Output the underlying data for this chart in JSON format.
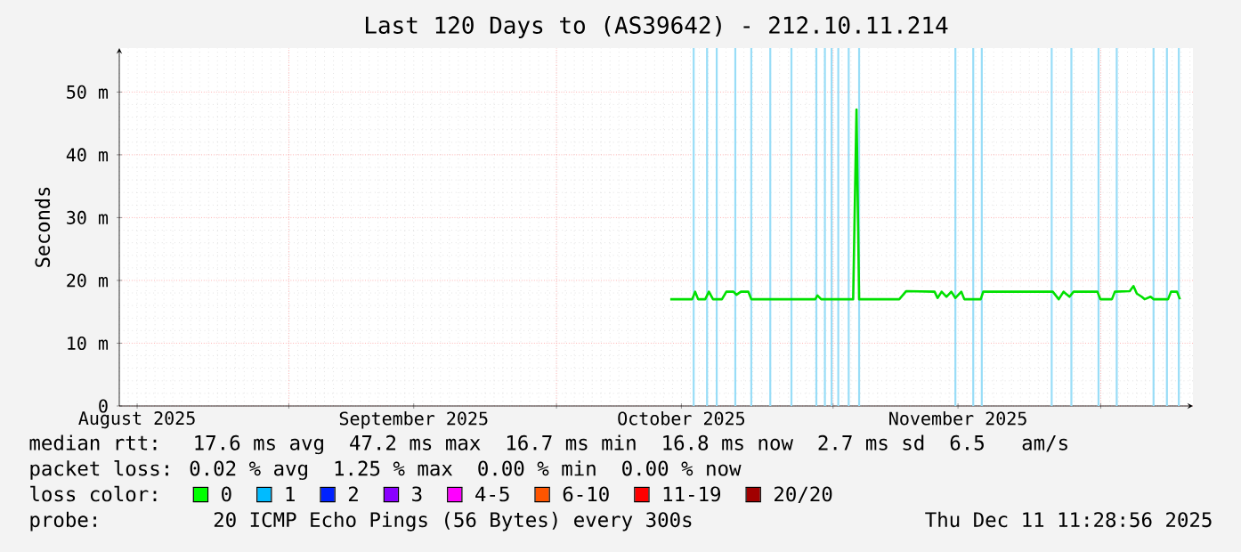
{
  "chart_data": {
    "type": "line",
    "title": "Last 120 Days to (AS39642) - 212.10.11.214",
    "ylabel": "Seconds",
    "xlim": [
      "2025-08-13T00:00",
      "2025-12-11T08:00"
    ],
    "xticks": [
      {
        "value": "2025-08-15T00:00",
        "label": "August 2025"
      },
      {
        "value": "2025-09-01T00:00",
        "label": null
      },
      {
        "value": "2025-09-15T00:00",
        "label": "September 2025"
      },
      {
        "value": "2025-10-01T00:00",
        "label": null
      },
      {
        "value": "2025-10-15T00:00",
        "label": "October 2025"
      },
      {
        "value": "2025-11-01T00:00",
        "label": null
      },
      {
        "value": "2025-11-15T00:00",
        "label": "November 2025"
      },
      {
        "value": "2025-12-01T00:00",
        "label": null
      }
    ],
    "ylim": [
      0,
      57
    ],
    "yticks": [
      0,
      {
        "value": 10,
        "label": "10 m"
      },
      {
        "value": 20,
        "label": "20 m"
      },
      {
        "value": 30,
        "label": "30 m"
      },
      {
        "value": 40,
        "label": "40 m"
      },
      {
        "value": 50,
        "label": "50 m"
      }
    ],
    "grid": true,
    "x": [
      "2025-10-13T18:00",
      "2025-10-16T05:00",
      "2025-10-16T13:00",
      "2025-10-16T21:00",
      "2025-10-17T16:00",
      "2025-10-18T02:00",
      "2025-10-18T13:00",
      "2025-10-19T13:00",
      "2025-10-20T01:00",
      "2025-10-20T20:00",
      "2025-10-21T04:00",
      "2025-10-21T16:00",
      "2025-10-22T12:00",
      "2025-10-22T20:00",
      "2025-10-30T00:00",
      "2025-10-30T06:00",
      "2025-10-30T16:00",
      "2025-11-03T06:00",
      "2025-11-03T15:00",
      "2025-11-03T22:00",
      "2025-11-08T10:00",
      "2025-11-09T05:00",
      "2025-11-12T09:00",
      "2025-11-12T17:00",
      "2025-11-13T04:00",
      "2025-11-13T17:00",
      "2025-11-14T06:00",
      "2025-11-14T17:00",
      "2025-11-15T09:00",
      "2025-11-15T17:00",
      "2025-11-17T13:00",
      "2025-11-17T20:00",
      "2025-11-25T15:00",
      "2025-11-26T07:00",
      "2025-11-26T20:00",
      "2025-11-27T12:00",
      "2025-11-27T23:00",
      "2025-11-30T15:00",
      "2025-11-30T23:00",
      "2025-12-02T06:00",
      "2025-12-02T14:00",
      "2025-12-04T06:00",
      "2025-12-04T16:00",
      "2025-12-05T01:00",
      "2025-12-05T14:00",
      "2025-12-05T22:00",
      "2025-12-06T14:00",
      "2025-12-06T22:00",
      "2025-12-08T13:00",
      "2025-12-08T21:00",
      "2025-12-09T13:00",
      "2025-12-09T21:00"
    ],
    "series": [
      {
        "color": "#00e000",
        "values": [
          17.0,
          17.0,
          18.2,
          17.0,
          17.0,
          18.2,
          17.0,
          17.0,
          18.2,
          18.2,
          17.7,
          18.2,
          18.2,
          17.0,
          17.0,
          17.6,
          17.0,
          17.0,
          47.2,
          17.0,
          17.0,
          18.3,
          18.2,
          17.2,
          18.2,
          17.4,
          18.2,
          17.2,
          18.2,
          17.0,
          17.0,
          18.2,
          18.2,
          17.0,
          18.2,
          17.4,
          18.2,
          18.2,
          17.0,
          17.0,
          18.2,
          18.3,
          19.1,
          17.9,
          17.4,
          17.0,
          17.4,
          17.0,
          17.0,
          18.2,
          18.2,
          17.0
        ]
      }
    ],
    "ref_lines": [
      {
        "axis": "x",
        "value": "2025-10-16T09:00",
        "color": "#99ddf7"
      },
      {
        "axis": "x",
        "value": "2025-10-17T21:00",
        "color": "#99ddf7"
      },
      {
        "axis": "x",
        "value": "2025-10-18T23:00",
        "color": "#99ddf7"
      },
      {
        "axis": "x",
        "value": "2025-10-21T01:00",
        "color": "#99ddf7"
      },
      {
        "axis": "x",
        "value": "2025-10-22T20:00",
        "color": "#99ddf7"
      },
      {
        "axis": "x",
        "value": "2025-10-24T23:00",
        "color": "#99ddf7"
      },
      {
        "axis": "x",
        "value": "2025-10-27T08:00",
        "color": "#99ddf7"
      },
      {
        "axis": "x",
        "value": "2025-10-30T03:00",
        "color": "#99ddf7"
      },
      {
        "axis": "x",
        "value": "2025-10-31T02:00",
        "color": "#99ddf7"
      },
      {
        "axis": "x",
        "value": "2025-10-31T20:00",
        "color": "#99ddf7"
      },
      {
        "axis": "x",
        "value": "2025-11-01T14:00",
        "color": "#99ddf7"
      },
      {
        "axis": "x",
        "value": "2025-11-02T18:00",
        "color": "#99ddf7"
      },
      {
        "axis": "x",
        "value": "2025-11-03T22:00",
        "color": "#99ddf7"
      },
      {
        "axis": "x",
        "value": "2025-11-14T17:00",
        "color": "#99ddf7"
      },
      {
        "axis": "x",
        "value": "2025-11-16T17:00",
        "color": "#99ddf7"
      },
      {
        "axis": "x",
        "value": "2025-11-17T16:00",
        "color": "#99ddf7"
      },
      {
        "axis": "x",
        "value": "2025-11-25T12:00",
        "color": "#99ddf7"
      },
      {
        "axis": "x",
        "value": "2025-11-27T17:00",
        "color": "#99ddf7"
      },
      {
        "axis": "x",
        "value": "2025-11-30T18:00",
        "color": "#99ddf7"
      },
      {
        "axis": "x",
        "value": "2025-12-02T19:00",
        "color": "#99ddf7"
      },
      {
        "axis": "x",
        "value": "2025-12-06T22:00",
        "color": "#99ddf7"
      },
      {
        "axis": "x",
        "value": "2025-12-08T10:00",
        "color": "#99ddf7"
      },
      {
        "axis": "x",
        "value": "2025-12-09T18:00",
        "color": "#99ddf7"
      }
    ],
    "annotations": [
      "median rtt:  17.6 ms avg  47.2 ms max  16.7 ms min  16.8 ms now  2.7 ms sd  6.5   am/s",
      "packet loss: 0.02 % avg  1.25 % max  0.00 % min  0.00 % now",
      "loss color:",
      "0",
      "1",
      "2",
      "3",
      "4-5",
      "6-10",
      "11-19",
      "20/20",
      "probe:       20 ICMP Echo Pings (56 Bytes) every 300s",
      "Thu Dec 11 11:28:56 2025"
    ]
  }
}
